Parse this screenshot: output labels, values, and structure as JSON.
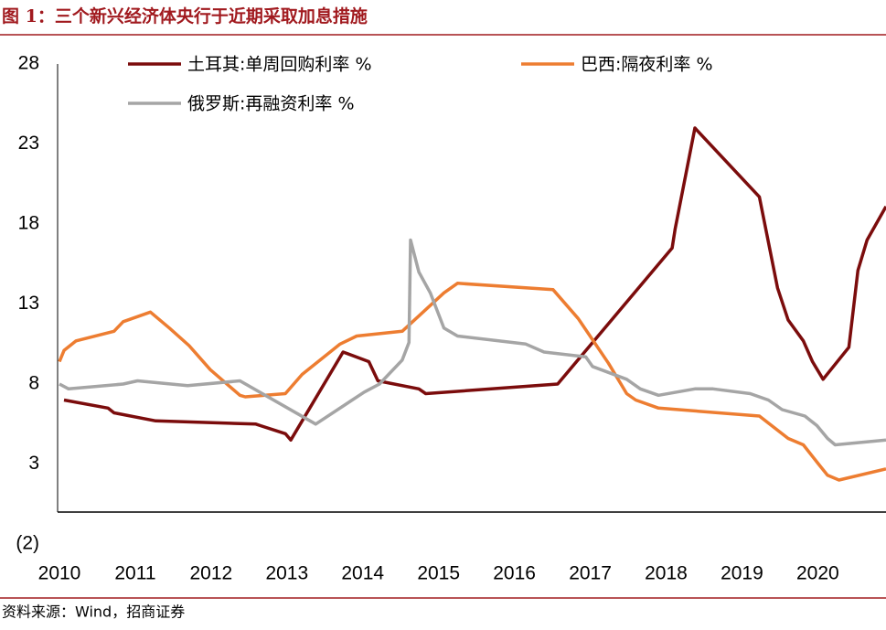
{
  "chart_data": {
    "type": "line",
    "title": "图 1：三个新兴经济体央行于近期采取加息措施",
    "source": "资料来源：Wind，招商证券",
    "xlim": [
      2010,
      2020.9
    ],
    "xticks": [
      2010,
      2011,
      2012,
      2013,
      2014,
      2015,
      2016,
      2017,
      2018,
      2019,
      2020
    ],
    "ylim": [
      -2,
      28
    ],
    "yticks": [
      {
        "value": -2,
        "label": "(2)"
      },
      3,
      8,
      13,
      18,
      23,
      28
    ],
    "negative_tick_color": "#c00000",
    "grid": false,
    "series": [
      {
        "name": "土耳其:单周回购利率 %",
        "color": "#7b0c0c",
        "x": [
          2010.06,
          2010.64,
          2010.72,
          2011.27,
          2012.59,
          2012.65,
          2012.98,
          2013.05,
          2013.74,
          2014.08,
          2014.2,
          2014.74,
          2014.83,
          2016.57,
          2018.08,
          2018.12,
          2018.38,
          2019.23,
          2019.47,
          2019.61,
          2019.81,
          2019.93,
          2020.07,
          2020.41,
          2020.53,
          2020.65,
          2020.9
        ],
        "values": [
          7.0,
          6.5,
          6.2,
          5.7,
          5.5,
          5.4,
          4.9,
          4.5,
          10.0,
          9.4,
          8.2,
          7.7,
          7.4,
          8.0,
          16.5,
          17.7,
          24.0,
          19.7,
          14.0,
          12.0,
          10.7,
          9.4,
          8.3,
          10.3,
          15.1,
          17.0,
          19.1
        ]
      },
      {
        "name": "巴西:隔夜利率 %",
        "color": "#ed7d31",
        "x": [
          2010.0,
          2010.06,
          2010.22,
          2010.72,
          2010.84,
          2011.2,
          2011.45,
          2011.71,
          2011.99,
          2012.38,
          2012.45,
          2012.98,
          2013.2,
          2013.7,
          2013.92,
          2014.52,
          2015.07,
          2015.25,
          2016.51,
          2016.84,
          2017.24,
          2017.48,
          2017.6,
          2017.9,
          2019.23,
          2019.61,
          2019.81,
          2020.01,
          2020.13,
          2020.28,
          2020.9
        ],
        "values": [
          9.4,
          10.1,
          10.7,
          11.3,
          11.9,
          12.5,
          11.5,
          10.4,
          8.9,
          7.3,
          7.2,
          7.4,
          8.6,
          10.5,
          11.0,
          11.3,
          13.7,
          14.3,
          13.9,
          12.1,
          9.3,
          7.4,
          7.0,
          6.5,
          6.0,
          4.6,
          4.2,
          3.0,
          2.3,
          2.0,
          2.7
        ]
      },
      {
        "name": "俄罗斯:再融资利率 %",
        "color": "#a5a5a5",
        "x": [
          2010.0,
          2010.12,
          2010.84,
          2011.03,
          2011.69,
          2012.38,
          2013.38,
          2014.02,
          2014.22,
          2014.52,
          2014.61,
          2014.63,
          2014.74,
          2014.89,
          2015.07,
          2015.25,
          2016.15,
          2016.39,
          2016.94,
          2017.03,
          2017.48,
          2017.66,
          2017.9,
          2018.38,
          2018.62,
          2019.11,
          2019.35,
          2019.53,
          2019.83,
          2019.99,
          2020.13,
          2020.23,
          2020.9
        ],
        "values": [
          8.0,
          7.7,
          8.0,
          8.2,
          7.9,
          8.2,
          5.5,
          7.5,
          8.0,
          9.5,
          10.6,
          17.0,
          15.0,
          13.7,
          11.5,
          11.0,
          10.5,
          10.0,
          9.7,
          9.1,
          8.3,
          7.7,
          7.3,
          7.7,
          7.7,
          7.4,
          7.0,
          6.4,
          6.0,
          5.4,
          4.6,
          4.2,
          4.5
        ]
      }
    ]
  }
}
